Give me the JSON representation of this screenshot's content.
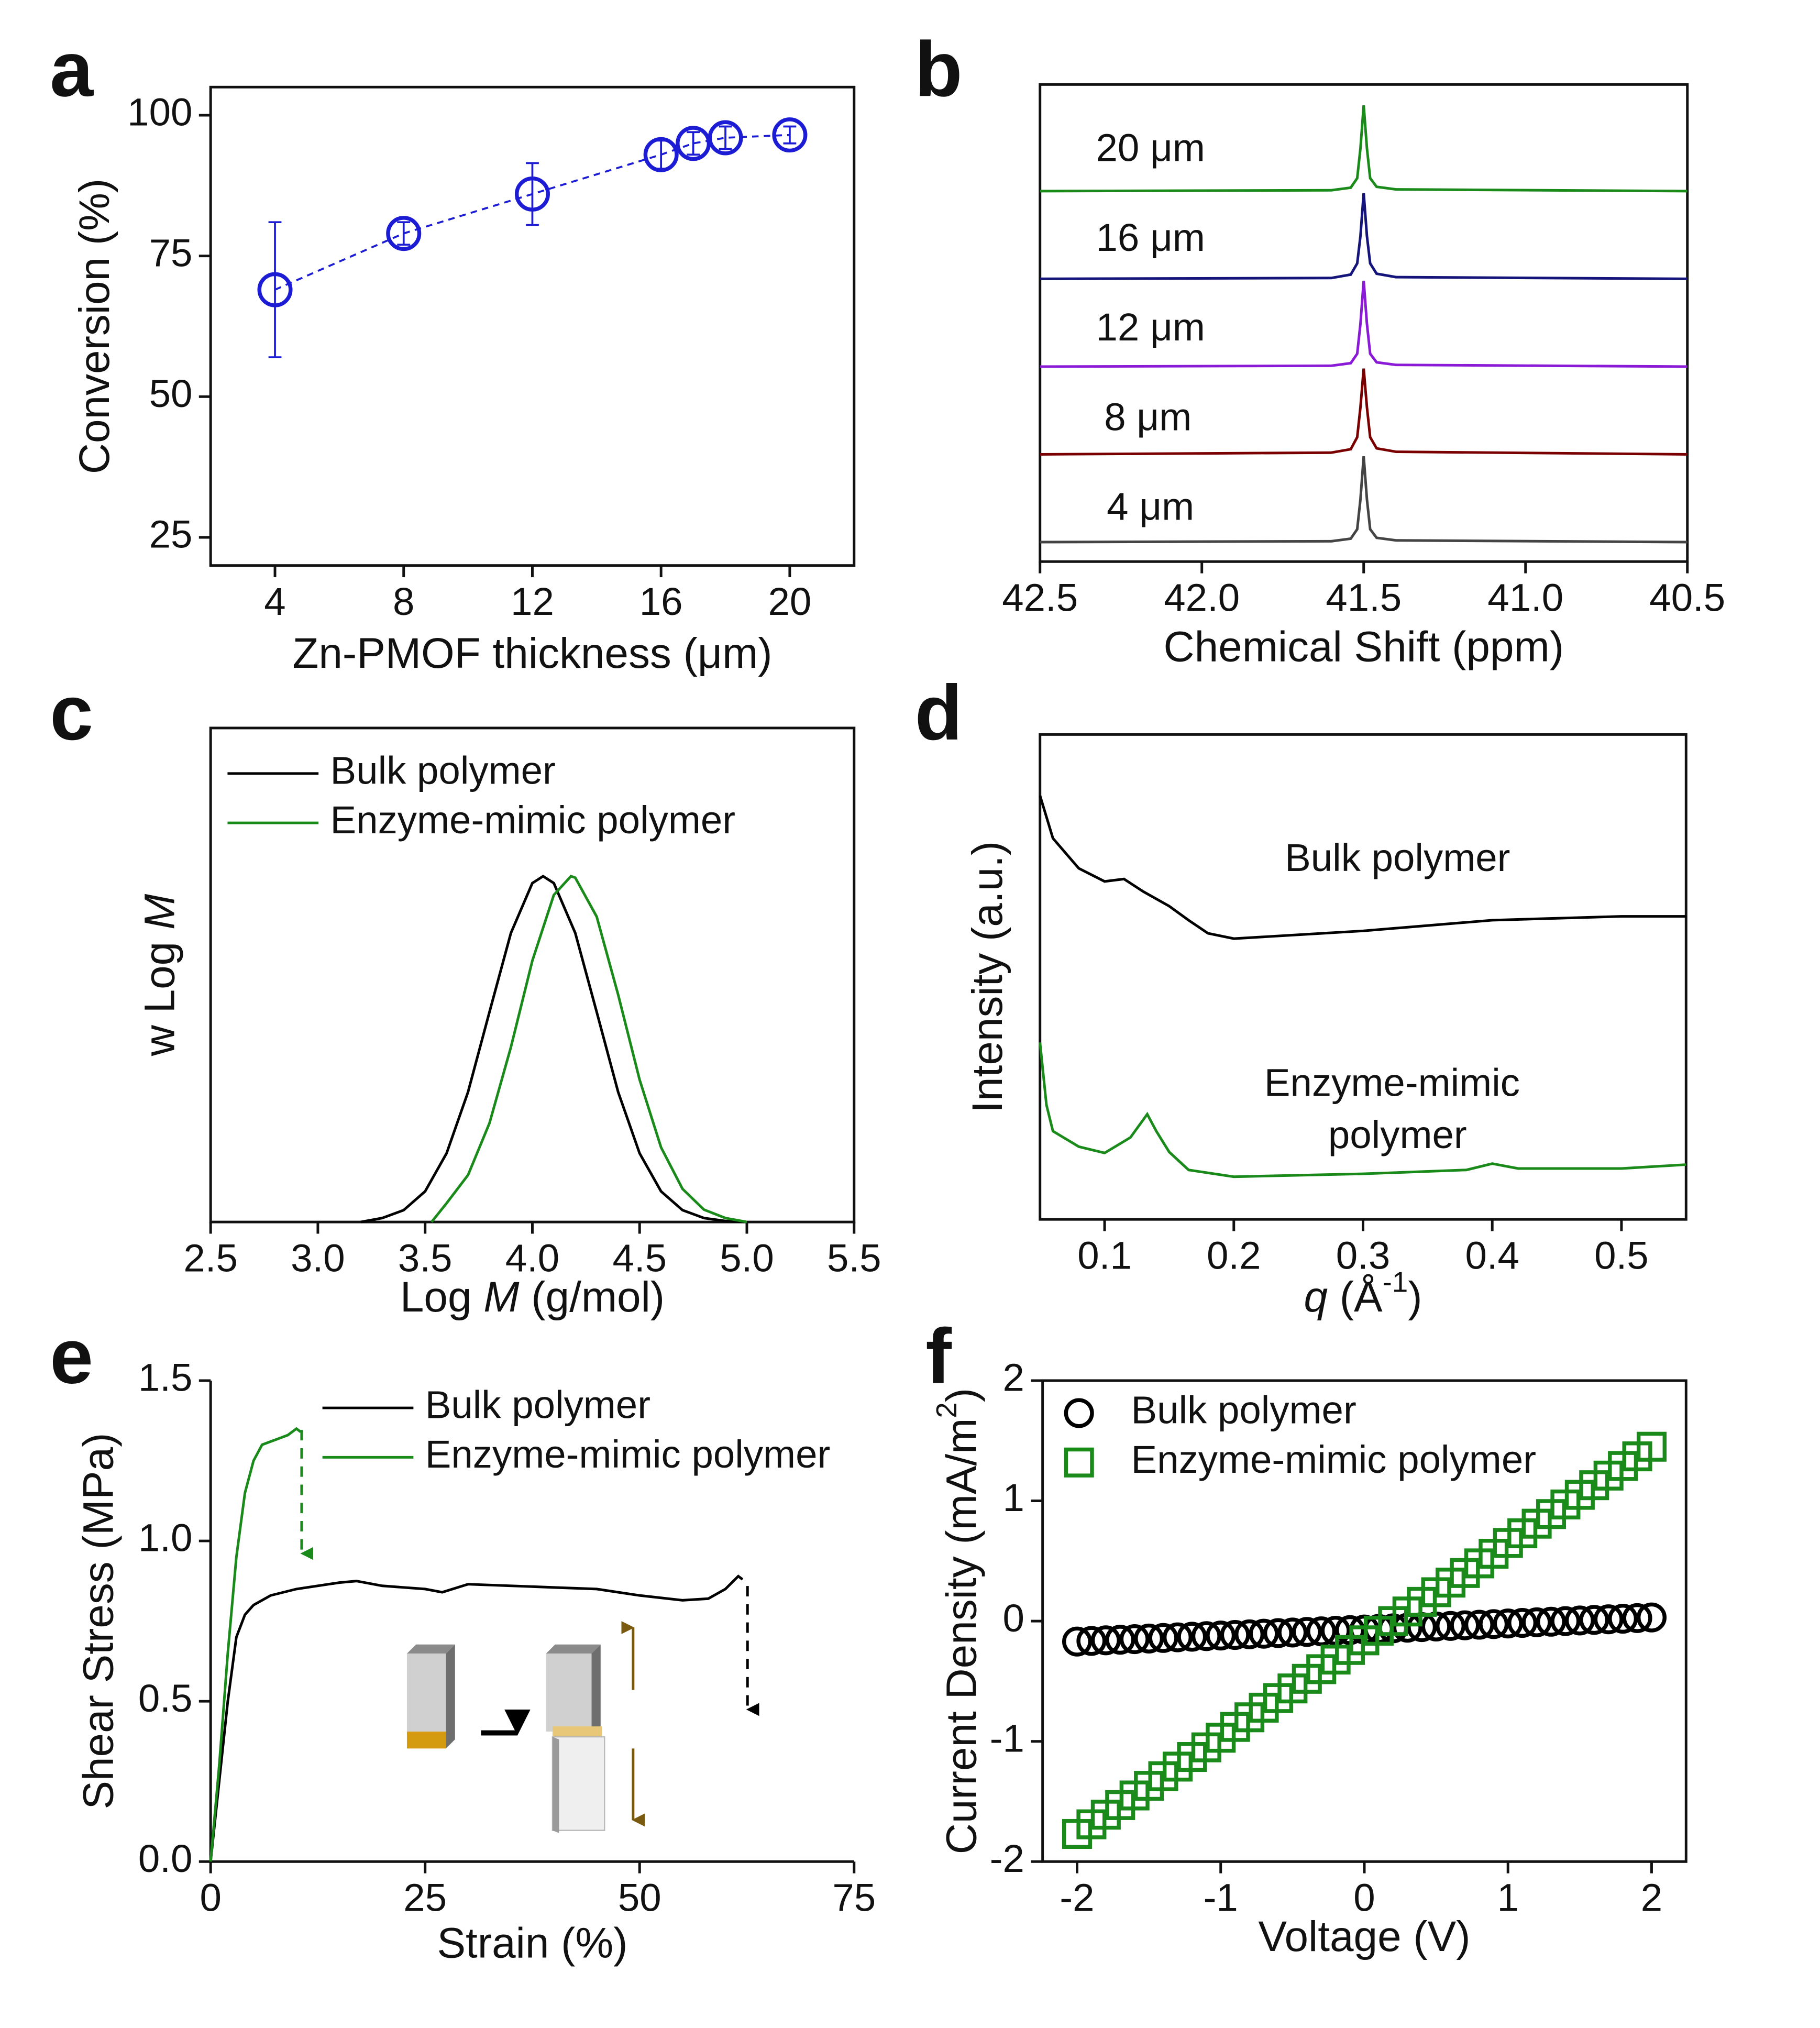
{
  "chart_data": [
    {
      "type": "scatter",
      "panel_label": "a",
      "x_label": "Zn-PMOF thickness (μm)",
      "y_label": "Conversion (%)",
      "x": [
        4,
        8,
        12,
        16,
        17,
        18,
        20
      ],
      "values": [
        69,
        79,
        86,
        93,
        95,
        96,
        96.5
      ],
      "errors": [
        12,
        2,
        5.5,
        2.5,
        2,
        2,
        1.5
      ],
      "color": "#1c1cd4",
      "marker": "circle",
      "line": "dashed",
      "xlim": [
        2,
        22
      ],
      "ylim": [
        20,
        105
      ],
      "xticks": [
        4,
        8,
        12,
        16,
        20
      ],
      "yticks": [
        25,
        50,
        75,
        100
      ]
    },
    {
      "type": "spectra",
      "panel_label": "b",
      "x_label": "Chemical Shift (ppm)",
      "legend": "inline",
      "xlim": [
        42.5,
        40.5
      ],
      "xticks": [
        42.5,
        {
          "value": 42,
          "label": "42.0"
        },
        41.5,
        {
          "value": 41,
          "label": "41.0"
        },
        40.5
      ],
      "series": [
        {
          "name": "4 μm",
          "color": "#444444",
          "x": [
            42.5,
            41.6,
            41.54,
            41.52,
            41.51,
            41.5,
            41.49,
            41.48,
            41.46,
            41.4,
            40.5
          ],
          "values": [
            0,
            0.01,
            0.04,
            0.15,
            0.5,
            1,
            0.5,
            0.15,
            0.05,
            0.02,
            0
          ]
        },
        {
          "name": "8 μm",
          "color": "#7a0000",
          "x": [
            42.5,
            41.6,
            41.54,
            41.52,
            41.51,
            41.5,
            41.49,
            41.48,
            41.46,
            41.4,
            40.5
          ],
          "values": [
            0,
            0.02,
            0.06,
            0.2,
            0.55,
            1,
            0.55,
            0.2,
            0.07,
            0.03,
            0
          ]
        },
        {
          "name": "12 μm",
          "color": "#8a1ad6",
          "x": [
            42.5,
            41.6,
            41.54,
            41.52,
            41.51,
            41.5,
            41.49,
            41.48,
            41.46,
            41.4,
            40.5
          ],
          "values": [
            0,
            0.01,
            0.04,
            0.15,
            0.5,
            1,
            0.5,
            0.15,
            0.05,
            0.02,
            0
          ]
        },
        {
          "name": "16 μm",
          "color": "#14147a",
          "x": [
            42.5,
            41.6,
            41.54,
            41.52,
            41.51,
            41.5,
            41.49,
            41.48,
            41.46,
            41.4,
            40.5
          ],
          "values": [
            0,
            0.01,
            0.05,
            0.18,
            0.5,
            1,
            0.5,
            0.18,
            0.06,
            0.02,
            0
          ]
        },
        {
          "name": "20 μm",
          "color": "#1a8a1a",
          "x": [
            42.5,
            41.6,
            41.54,
            41.52,
            41.51,
            41.5,
            41.49,
            41.48,
            41.46,
            41.4,
            40.5
          ],
          "values": [
            0,
            0.01,
            0.04,
            0.15,
            0.5,
            1,
            0.5,
            0.15,
            0.05,
            0.02,
            0
          ]
        }
      ]
    },
    {
      "type": "line",
      "panel_label": "c",
      "x_label": [
        "Log",
        "M",
        "(g/mol)"
      ],
      "y_label": [
        "w Log",
        "M"
      ],
      "legend": "upper left",
      "xlim": [
        2.5,
        5.5
      ],
      "ylim": [
        0,
        1
      ],
      "xticks": [
        2.5,
        {
          "value": 3,
          "label": "3.0"
        },
        3.5,
        {
          "value": 4,
          "label": "4.0"
        },
        4.5,
        {
          "value": 5,
          "label": "5.0"
        },
        5.5
      ],
      "series": [
        {
          "name": "Bulk polymer",
          "color": "#000000",
          "x": [
            3.2,
            3.3,
            3.4,
            3.5,
            3.6,
            3.7,
            3.8,
            3.9,
            4.0,
            4.05,
            4.1,
            4.2,
            4.3,
            4.4,
            4.5,
            4.6,
            4.7,
            4.8,
            4.9,
            5.0
          ],
          "values": [
            0,
            0.008,
            0.024,
            0.062,
            0.139,
            0.263,
            0.425,
            0.585,
            0.686,
            0.7,
            0.686,
            0.585,
            0.425,
            0.263,
            0.139,
            0.062,
            0.024,
            0.008,
            0.002,
            0
          ]
        },
        {
          "name": "Enzyme-mimic polymer",
          "color": "#1a8a1a",
          "x": [
            3.53,
            3.6,
            3.7,
            3.8,
            3.9,
            4.0,
            4.1,
            4.18,
            4.2,
            4.3,
            4.4,
            4.5,
            4.6,
            4.7,
            4.8,
            4.9,
            5.0
          ],
          "values": [
            0,
            0.038,
            0.095,
            0.2,
            0.354,
            0.529,
            0.662,
            0.7,
            0.697,
            0.618,
            0.46,
            0.288,
            0.151,
            0.067,
            0.025,
            0.008,
            0
          ]
        }
      ]
    },
    {
      "type": "line",
      "panel_label": "d",
      "x_label": [
        "q",
        "(Å",
        "-1",
        ")"
      ],
      "y_label": "Intensity (a.u.)",
      "legend": "inline",
      "xlim": [
        0.05,
        0.55
      ],
      "ylim": [
        0,
        1
      ],
      "xticks": [
        0.1,
        0.2,
        0.3,
        0.4,
        0.5
      ],
      "series": [
        {
          "name": "Bulk polymer",
          "color": "#000000",
          "x": [
            0.05,
            0.06,
            0.08,
            0.1,
            0.115,
            0.13,
            0.15,
            0.165,
            0.18,
            0.2,
            0.3,
            0.4,
            0.5,
            0.55
          ],
          "values": [
            0.874,
            0.786,
            0.724,
            0.697,
            0.702,
            0.676,
            0.646,
            0.617,
            0.59,
            0.579,
            0.595,
            0.617,
            0.625,
            0.625
          ]
        },
        {
          "name": "Enzyme-mimic polymer",
          "color": "#1a8a1a",
          "x": [
            0.05,
            0.055,
            0.06,
            0.08,
            0.1,
            0.12,
            0.133,
            0.14,
            0.15,
            0.165,
            0.2,
            0.3,
            0.38,
            0.4,
            0.42,
            0.5,
            0.55
          ],
          "values": [
            0.365,
            0.236,
            0.182,
            0.15,
            0.137,
            0.169,
            0.217,
            0.182,
            0.139,
            0.102,
            0.088,
            0.094,
            0.102,
            0.115,
            0.105,
            0.105,
            0.113
          ]
        }
      ]
    },
    {
      "type": "line",
      "panel_label": "e",
      "x_label": "Strain (%)",
      "y_label": "Shear Stress (MPa)",
      "legend": "upper right",
      "xlim": [
        0,
        75
      ],
      "ylim": [
        0,
        1.5
      ],
      "xticks": [
        0,
        25,
        50,
        75
      ],
      "yticks": [
        {
          "value": 0,
          "label": "0.0"
        },
        0.5,
        {
          "value": 1,
          "label": "1.0"
        },
        1.5
      ],
      "series": [
        {
          "name": "Bulk polymer",
          "color": "#000000",
          "x": [
            0,
            1,
            2,
            3,
            4,
            5,
            7,
            10,
            15,
            17,
            20,
            25,
            27,
            30,
            40,
            45,
            50,
            55,
            58,
            60,
            61.5,
            62
          ],
          "values": [
            0,
            0.25,
            0.5,
            0.7,
            0.77,
            0.8,
            0.83,
            0.85,
            0.87,
            0.875,
            0.86,
            0.85,
            0.84,
            0.865,
            0.855,
            0.85,
            0.83,
            0.815,
            0.82,
            0.85,
            0.89,
            0.88
          ]
        },
        {
          "name": "Enzyme-mimic polymer",
          "color": "#1a8a1a",
          "x": [
            0,
            1,
            2,
            3,
            4,
            5,
            6,
            8,
            9,
            10,
            10.5
          ],
          "values": [
            0,
            0.3,
            0.65,
            0.95,
            1.15,
            1.25,
            1.3,
            1.32,
            1.33,
            1.35,
            1.34
          ]
        }
      ]
    },
    {
      "type": "scatter",
      "panel_label": "f",
      "x_label": "Voltage (V)",
      "y_label": [
        "Current Density (mA/m",
        "2",
        ")"
      ],
      "legend": "upper left",
      "xlim": [
        -2.24,
        2.24
      ],
      "ylim": [
        -2,
        2
      ],
      "xticks": [
        -2,
        -1,
        0,
        1,
        2
      ],
      "yticks": [
        -2,
        -1,
        0,
        1,
        2
      ],
      "series": [
        {
          "name": "Bulk polymer",
          "color": "#000000",
          "marker": "circle",
          "x": [
            -2,
            -1.9,
            -1.8,
            -1.7,
            -1.6,
            -1.5,
            -1.4,
            -1.3,
            -1.2,
            -1.1,
            -1,
            -0.9,
            -0.8,
            -0.7,
            -0.6,
            -0.5,
            -0.4,
            -0.3,
            -0.2,
            -0.1,
            0,
            0.1,
            0.2,
            0.3,
            0.4,
            0.5,
            0.6,
            0.7,
            0.8,
            0.9,
            1,
            1.1,
            1.2,
            1.3,
            1.4,
            1.5,
            1.6,
            1.7,
            1.8,
            1.9,
            2
          ],
          "values": [
            -0.17,
            -0.165,
            -0.16,
            -0.155,
            -0.15,
            -0.145,
            -0.14,
            -0.135,
            -0.13,
            -0.125,
            -0.12,
            -0.115,
            -0.11,
            -0.105,
            -0.1,
            -0.095,
            -0.09,
            -0.085,
            -0.08,
            -0.075,
            -0.07,
            -0.065,
            -0.06,
            -0.055,
            -0.05,
            -0.045,
            -0.04,
            -0.035,
            -0.03,
            -0.025,
            -0.02,
            -0.015,
            -0.01,
            -0.005,
            0,
            0.005,
            0.01,
            0.015,
            0.02,
            0.025,
            0.03
          ]
        },
        {
          "name": "Enzyme-mimic polymer",
          "color": "#1a8a1a",
          "marker": "square",
          "x": [
            -2,
            -1.9,
            -1.8,
            -1.7,
            -1.6,
            -1.5,
            -1.4,
            -1.3,
            -1.2,
            -1.1,
            -1,
            -0.9,
            -0.8,
            -0.7,
            -0.6,
            -0.5,
            -0.4,
            -0.3,
            -0.2,
            -0.1,
            0,
            0.1,
            0.2,
            0.3,
            0.4,
            0.5,
            0.6,
            0.7,
            0.8,
            0.9,
            1,
            1.1,
            1.2,
            1.3,
            1.4,
            1.5,
            1.6,
            1.7,
            1.8,
            1.9,
            2
          ],
          "values": [
            -1.77,
            -1.69,
            -1.61,
            -1.53,
            -1.45,
            -1.37,
            -1.29,
            -1.21,
            -1.13,
            -1.05,
            -0.97,
            -0.88,
            -0.8,
            -0.72,
            -0.64,
            -0.56,
            -0.48,
            -0.4,
            -0.32,
            -0.24,
            -0.16,
            -0.08,
            0,
            0.08,
            0.16,
            0.24,
            0.32,
            0.4,
            0.48,
            0.56,
            0.65,
            0.73,
            0.81,
            0.89,
            0.97,
            1.05,
            1.13,
            1.21,
            1.29,
            1.37,
            1.45
          ]
        }
      ]
    }
  ]
}
